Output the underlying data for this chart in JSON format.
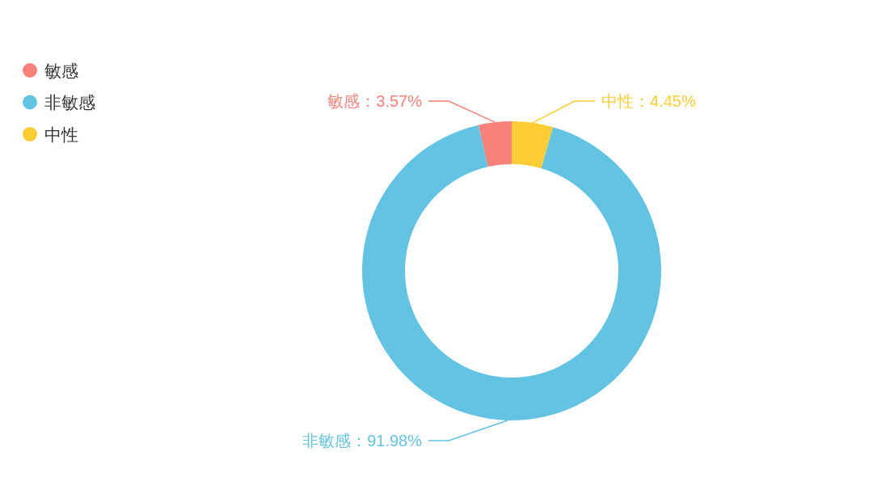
{
  "chart_data": {
    "type": "donut",
    "categories": [
      "敏感",
      "非敏感",
      "中性"
    ],
    "values": [
      3.57,
      91.98,
      4.45
    ],
    "colors": [
      "#fa817a",
      "#62c4e2",
      "#fdcc33"
    ],
    "value_labels": [
      "敏感：3.57%",
      "非敏感：91.98%",
      "中性：4.45%"
    ],
    "legend": "top left"
  }
}
